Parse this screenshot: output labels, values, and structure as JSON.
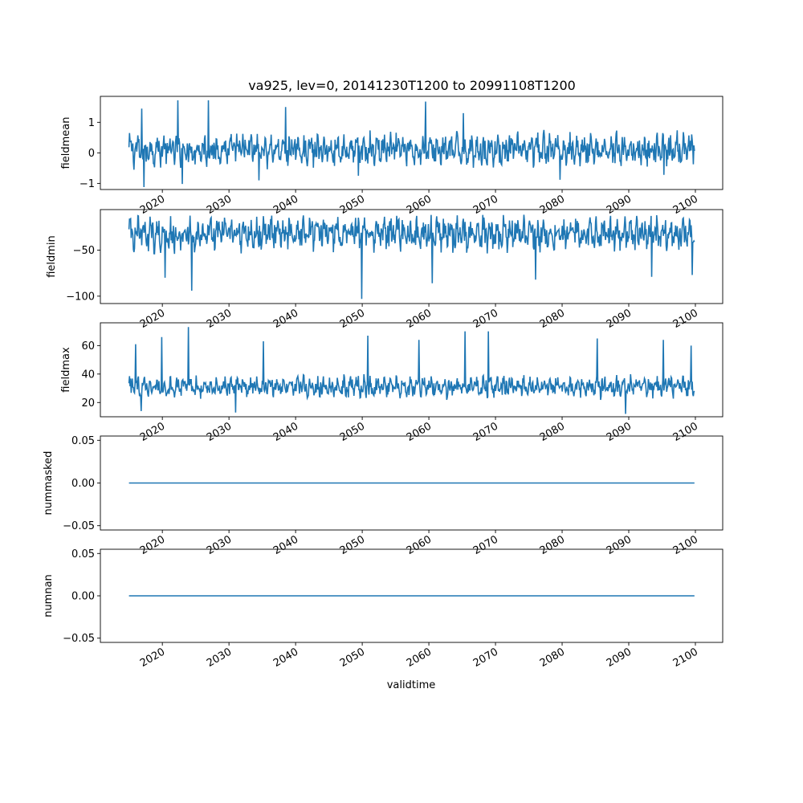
{
  "figure": {
    "title": "va925, lev=0, 20141230T1200 to 20991108T1200",
    "xlabel": "validtime"
  },
  "chart_data": [
    {
      "type": "line",
      "ylabel": "fieldmean",
      "x_range": [
        2014.99,
        2099.86
      ],
      "xlim": [
        2010.7,
        2104.1
      ],
      "ylim": [
        -1.2,
        1.85
      ],
      "yticks": [
        -1,
        0,
        1
      ],
      "ytick_labels": [
        "−1",
        "0",
        "1"
      ],
      "xticks": [
        2020,
        2030,
        2040,
        2050,
        2060,
        2070,
        2080,
        2090,
        2100
      ],
      "xtick_labels": [
        "2020",
        "2030",
        "2040",
        "2050",
        "2060",
        "2070",
        "2080",
        "2090",
        "2100"
      ],
      "series": [
        {
          "color": "#1f77b4",
          "points_per_year": 12,
          "baseline": 0.1,
          "amplitude": 0.42,
          "spike_max": 1.72,
          "spike_min": -1.12,
          "spikes": [
            [
              2017.2,
              -1.12
            ],
            [
              2016.9,
              1.45
            ],
            [
              2022.3,
              1.72
            ],
            [
              2023.0,
              -1.02
            ],
            [
              2026.9,
              1.72
            ],
            [
              2034.5,
              -0.9
            ],
            [
              2038.5,
              1.5
            ],
            [
              2049.4,
              -0.75
            ],
            [
              2059.5,
              1.68
            ],
            [
              2065.2,
              1.3
            ],
            [
              2079.7,
              -0.88
            ],
            [
              2095.3,
              -0.72
            ]
          ]
        }
      ]
    },
    {
      "type": "line",
      "ylabel": "fieldmin",
      "x_range": [
        2014.99,
        2099.86
      ],
      "xlim": [
        2010.7,
        2104.1
      ],
      "ylim": [
        -108,
        -6
      ],
      "yticks": [
        -100,
        -50
      ],
      "ytick_labels": [
        "−100",
        "−50"
      ],
      "xticks": [
        2020,
        2030,
        2040,
        2050,
        2060,
        2070,
        2080,
        2090,
        2100
      ],
      "xtick_labels": [
        "2020",
        "2030",
        "2040",
        "2050",
        "2060",
        "2070",
        "2080",
        "2090",
        "2100"
      ],
      "series": [
        {
          "color": "#1f77b4",
          "points_per_year": 12,
          "baseline": -32,
          "amplitude": 15,
          "upper": -13,
          "lower": -70,
          "spikes": [
            [
              2024.4,
              -94
            ],
            [
              2049.9,
              -103
            ],
            [
              2060.5,
              -86
            ],
            [
              2076.0,
              -82
            ],
            [
              2093.4,
              -79
            ],
            [
              2099.5,
              -77
            ],
            [
              2020.4,
              -80
            ]
          ]
        }
      ]
    },
    {
      "type": "line",
      "ylabel": "fieldmax",
      "x_range": [
        2014.99,
        2099.86
      ],
      "xlim": [
        2010.7,
        2104.1
      ],
      "ylim": [
        10,
        76
      ],
      "yticks": [
        20,
        40,
        60
      ],
      "ytick_labels": [
        "20",
        "40",
        "60"
      ],
      "xticks": [
        2020,
        2030,
        2040,
        2050,
        2060,
        2070,
        2080,
        2090,
        2100
      ],
      "xtick_labels": [
        "2020",
        "2030",
        "2040",
        "2050",
        "2060",
        "2070",
        "2080",
        "2090",
        "2100"
      ],
      "series": [
        {
          "color": "#1f77b4",
          "points_per_year": 12,
          "baseline": 31,
          "amplitude": 6,
          "upper": 50,
          "lower": 18,
          "spikes": [
            [
              2016.0,
              61
            ],
            [
              2023.9,
              73
            ],
            [
              2019.9,
              66
            ],
            [
              2050.8,
              67
            ],
            [
              2065.4,
              70
            ],
            [
              2068.9,
              70
            ],
            [
              2099.4,
              60
            ],
            [
              2089.5,
              12
            ],
            [
              2016.8,
              14
            ],
            [
              2031.0,
              13
            ],
            [
              2035.2,
              63
            ],
            [
              2058.5,
              64
            ],
            [
              2085.3,
              65
            ],
            [
              2095.2,
              64
            ]
          ]
        }
      ]
    },
    {
      "type": "line",
      "ylabel": "nummasked",
      "x_range": [
        2014.99,
        2099.86
      ],
      "xlim": [
        2010.7,
        2104.1
      ],
      "ylim": [
        -0.055,
        0.055
      ],
      "yticks": [
        -0.05,
        0.0,
        0.05
      ],
      "ytick_labels": [
        "−0.05",
        "0.00",
        "0.05"
      ],
      "xticks": [
        2020,
        2030,
        2040,
        2050,
        2060,
        2070,
        2080,
        2090,
        2100
      ],
      "xtick_labels": [
        "2020",
        "2030",
        "2040",
        "2050",
        "2060",
        "2070",
        "2080",
        "2090",
        "2100"
      ],
      "series": [
        {
          "color": "#1f77b4",
          "constant": 0.0
        }
      ]
    },
    {
      "type": "line",
      "ylabel": "numnan",
      "x_range": [
        2014.99,
        2099.86
      ],
      "xlim": [
        2010.7,
        2104.1
      ],
      "ylim": [
        -0.055,
        0.055
      ],
      "yticks": [
        -0.05,
        0.0,
        0.05
      ],
      "ytick_labels": [
        "−0.05",
        "0.00",
        "0.05"
      ],
      "xticks": [
        2020,
        2030,
        2040,
        2050,
        2060,
        2070,
        2080,
        2090,
        2100
      ],
      "xtick_labels": [
        "2020",
        "2030",
        "2040",
        "2050",
        "2060",
        "2070",
        "2080",
        "2090",
        "2100"
      ],
      "series": [
        {
          "color": "#1f77b4",
          "constant": 0.0
        }
      ]
    }
  ]
}
